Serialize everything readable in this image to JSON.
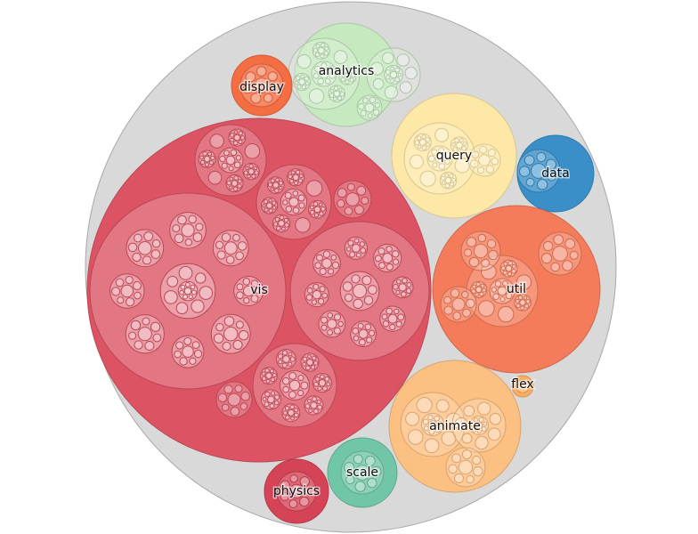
{
  "chart_data": {
    "type": "circle-packing",
    "root": {
      "fill": "#d9d9d9",
      "stroke": "#a8a8a8"
    },
    "groups": [
      {
        "name": "vis",
        "color": "#dc5464"
      },
      {
        "name": "analytics",
        "color": "#c7e9c0"
      },
      {
        "name": "display",
        "color": "#f46d43"
      },
      {
        "name": "query",
        "color": "#fee8a8"
      },
      {
        "name": "data",
        "color": "#3a8fc8"
      },
      {
        "name": "util",
        "color": "#f47c5a"
      },
      {
        "name": "flex",
        "color": "#fdae61"
      },
      {
        "name": "animate",
        "color": "#fdc083"
      },
      {
        "name": "scale",
        "color": "#72c6a8"
      },
      {
        "name": "physics",
        "color": "#d54456"
      }
    ]
  }
}
